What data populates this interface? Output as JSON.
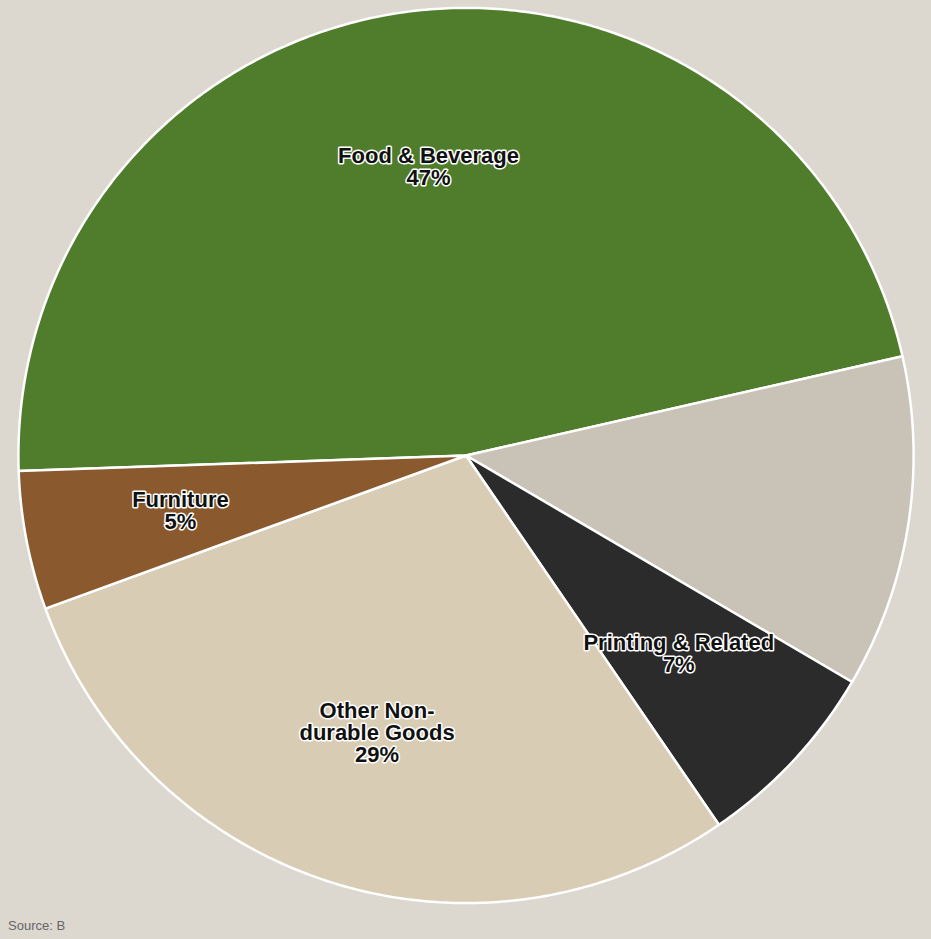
{
  "chart_data": {
    "type": "pie",
    "categories": [
      "Food & Beverage",
      null,
      "Printing & Related",
      "Other Non-durable Goods",
      "Furniture"
    ],
    "values": [
      47,
      12,
      7,
      29,
      5
    ],
    "value_labels": [
      "47%",
      null,
      "7%",
      "29%",
      "5%"
    ],
    "colors": [
      "#4f7d2c",
      "#c9c2b6",
      "#2b2b2b",
      "#d9ccb4",
      "#8a5a2e"
    ],
    "data_labels": true,
    "caption": "Source: B"
  }
}
